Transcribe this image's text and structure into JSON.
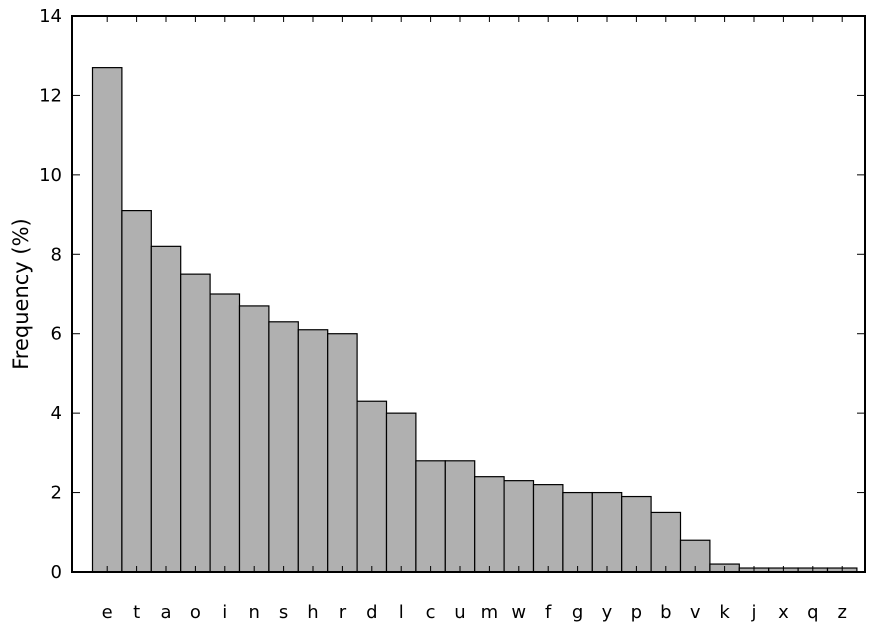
{
  "chart_data": {
    "type": "bar",
    "title": "",
    "xlabel": "",
    "ylabel": "Frequency (%)",
    "categories": [
      "e",
      "t",
      "a",
      "o",
      "i",
      "n",
      "s",
      "h",
      "r",
      "d",
      "l",
      "c",
      "u",
      "m",
      "w",
      "f",
      "g",
      "y",
      "p",
      "b",
      "v",
      "k",
      "j",
      "x",
      "q",
      "z"
    ],
    "values": [
      12.7,
      9.1,
      8.2,
      7.5,
      7.0,
      6.7,
      6.3,
      6.1,
      6.0,
      4.3,
      4.0,
      2.8,
      2.8,
      2.4,
      2.3,
      2.2,
      2.0,
      2.0,
      1.9,
      1.5,
      0.8,
      0.2,
      0.1,
      0.1,
      0.1,
      0.1
    ],
    "ylim": [
      0,
      14
    ],
    "yticks": [
      0,
      2,
      4,
      6,
      8,
      10,
      12,
      14
    ],
    "grid": false,
    "bar_color": "#b0b0b0",
    "edge_color": "#000000"
  }
}
